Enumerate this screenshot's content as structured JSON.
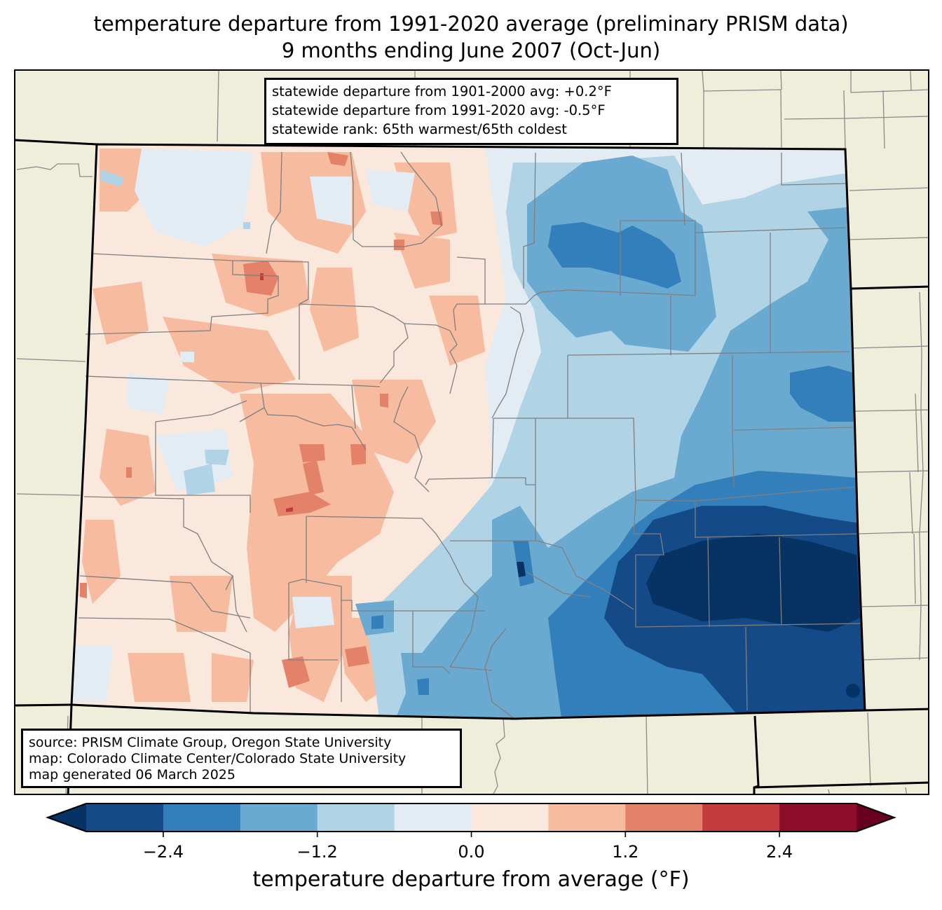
{
  "header": {
    "title_line1": "temperature departure from 1991-2020 average (preliminary PRISM data)",
    "title_line2": "9 months ending June 2007 (Oct-Jun)"
  },
  "stats": {
    "line1": "statewide departure from 1901-2000 avg: +0.2°F",
    "line2": "statewide departure from 1991-2020 avg: -0.5°F",
    "line3": "statewide rank: 65th warmest/65th coldest",
    "departure_1901_2000_f": 0.2,
    "departure_1991_2020_f": -0.5,
    "rank_warmest": "65th",
    "rank_coldest": "65th"
  },
  "source": {
    "line1": "source: PRISM Climate Group, Oregon State University",
    "line2": "map: Colorado Climate Center/Colorado State University",
    "line3": "map generated 06 March 2025"
  },
  "colorbar": {
    "label": "temperature departure from average (°F)",
    "bounds": [
      -3.0,
      -2.4,
      -1.8,
      -1.2,
      -0.6,
      0.0,
      0.6,
      1.2,
      1.8,
      2.4,
      3.0
    ],
    "ticks": [
      -2.4,
      -1.2,
      0.0,
      1.2,
      2.4
    ],
    "tick_labels": [
      "−2.4",
      "−1.2",
      "0.0",
      "1.2",
      "2.4"
    ],
    "extend": "both",
    "colors": [
      "#144a87",
      "#327fbb",
      "#6aaad1",
      "#b0d3e6",
      "#e4ecf3",
      "#fae8dd",
      "#f7bba0",
      "#e38169",
      "#c33b3d",
      "#8b0d27"
    ],
    "under_color": "#063264",
    "over_color": "#68001f"
  },
  "map": {
    "state": "Colorado",
    "background_color": "#efeedb",
    "regions_summary": {
      "west": "mostly 0.0 to +1.2 °F (light to medium salmon), scattered +1.2 to +2.4 °F pockets",
      "east": "mostly -0.6 to -2.4 °F, coldest below -3.0 °F in southeast"
    }
  },
  "chart_data": {
    "type": "heatmap",
    "title": "temperature departure from 1991-2020 average (preliminary PRISM data) — 9 months ending June 2007 (Oct-Jun)",
    "colorbar_label": "temperature departure from average (°F)",
    "levels": [
      -3.0,
      -2.4,
      -1.8,
      -1.2,
      -0.6,
      0.0,
      0.6,
      1.2,
      1.8,
      2.4,
      3.0
    ],
    "ticks": [
      -2.4,
      -1.2,
      0.0,
      1.2,
      2.4
    ],
    "range": [
      -3.0,
      3.0
    ],
    "legend": "bottom"
  }
}
